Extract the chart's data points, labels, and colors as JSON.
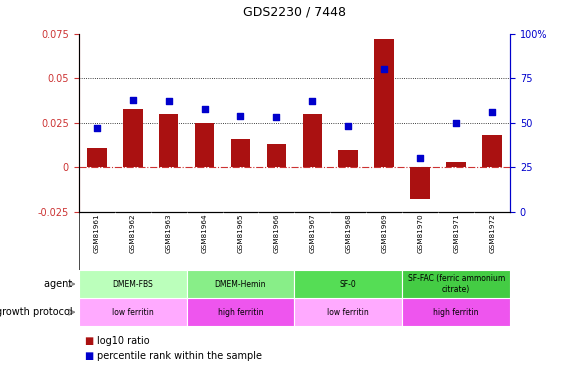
{
  "title": "GDS2230 / 7448",
  "samples": [
    "GSM81961",
    "GSM81962",
    "GSM81963",
    "GSM81964",
    "GSM81965",
    "GSM81966",
    "GSM81967",
    "GSM81968",
    "GSM81969",
    "GSM81970",
    "GSM81971",
    "GSM81972"
  ],
  "log10_ratio": [
    0.011,
    0.033,
    0.03,
    0.025,
    0.016,
    0.013,
    0.03,
    0.01,
    0.072,
    -0.018,
    0.003,
    0.018
  ],
  "percentile_rank": [
    47,
    63,
    62,
    58,
    54,
    53,
    62,
    48,
    80,
    30,
    50,
    56
  ],
  "bar_color": "#aa1111",
  "dot_color": "#0000cc",
  "hline_color": "#cc3333",
  "dot_line1": 0.05,
  "dot_line2": 0.025,
  "ylim_left": [
    -0.025,
    0.075
  ],
  "ylim_right": [
    0,
    100
  ],
  "yticks_left": [
    -0.025,
    0,
    0.025,
    0.05,
    0.075
  ],
  "yticks_right": [
    0,
    25,
    50,
    75,
    100
  ],
  "agent_groups": [
    {
      "label": "DMEM-FBS",
      "start": 0,
      "end": 3,
      "color": "#bbffbb"
    },
    {
      "label": "DMEM-Hemin",
      "start": 3,
      "end": 6,
      "color": "#88ee88"
    },
    {
      "label": "SF-0",
      "start": 6,
      "end": 9,
      "color": "#55dd55"
    },
    {
      "label": "SF-FAC (ferric ammonium\ncitrate)",
      "start": 9,
      "end": 12,
      "color": "#44cc44"
    }
  ],
  "growth_groups": [
    {
      "label": "low ferritin",
      "start": 0,
      "end": 3,
      "color": "#ffaaff"
    },
    {
      "label": "high ferritin",
      "start": 3,
      "end": 6,
      "color": "#ee55ee"
    },
    {
      "label": "low ferritin",
      "start": 6,
      "end": 9,
      "color": "#ffaaff"
    },
    {
      "label": "high ferritin",
      "start": 9,
      "end": 12,
      "color": "#ee55ee"
    }
  ],
  "legend_bar_label": "log10 ratio",
  "legend_dot_label": "percentile rank within the sample",
  "agent_label": "agent",
  "growth_label": "growth protocol",
  "background_color": "#ffffff",
  "tick_label_color_left": "#cc3333",
  "tick_label_color_right": "#0000cc",
  "sample_bg_color": "#dddddd"
}
